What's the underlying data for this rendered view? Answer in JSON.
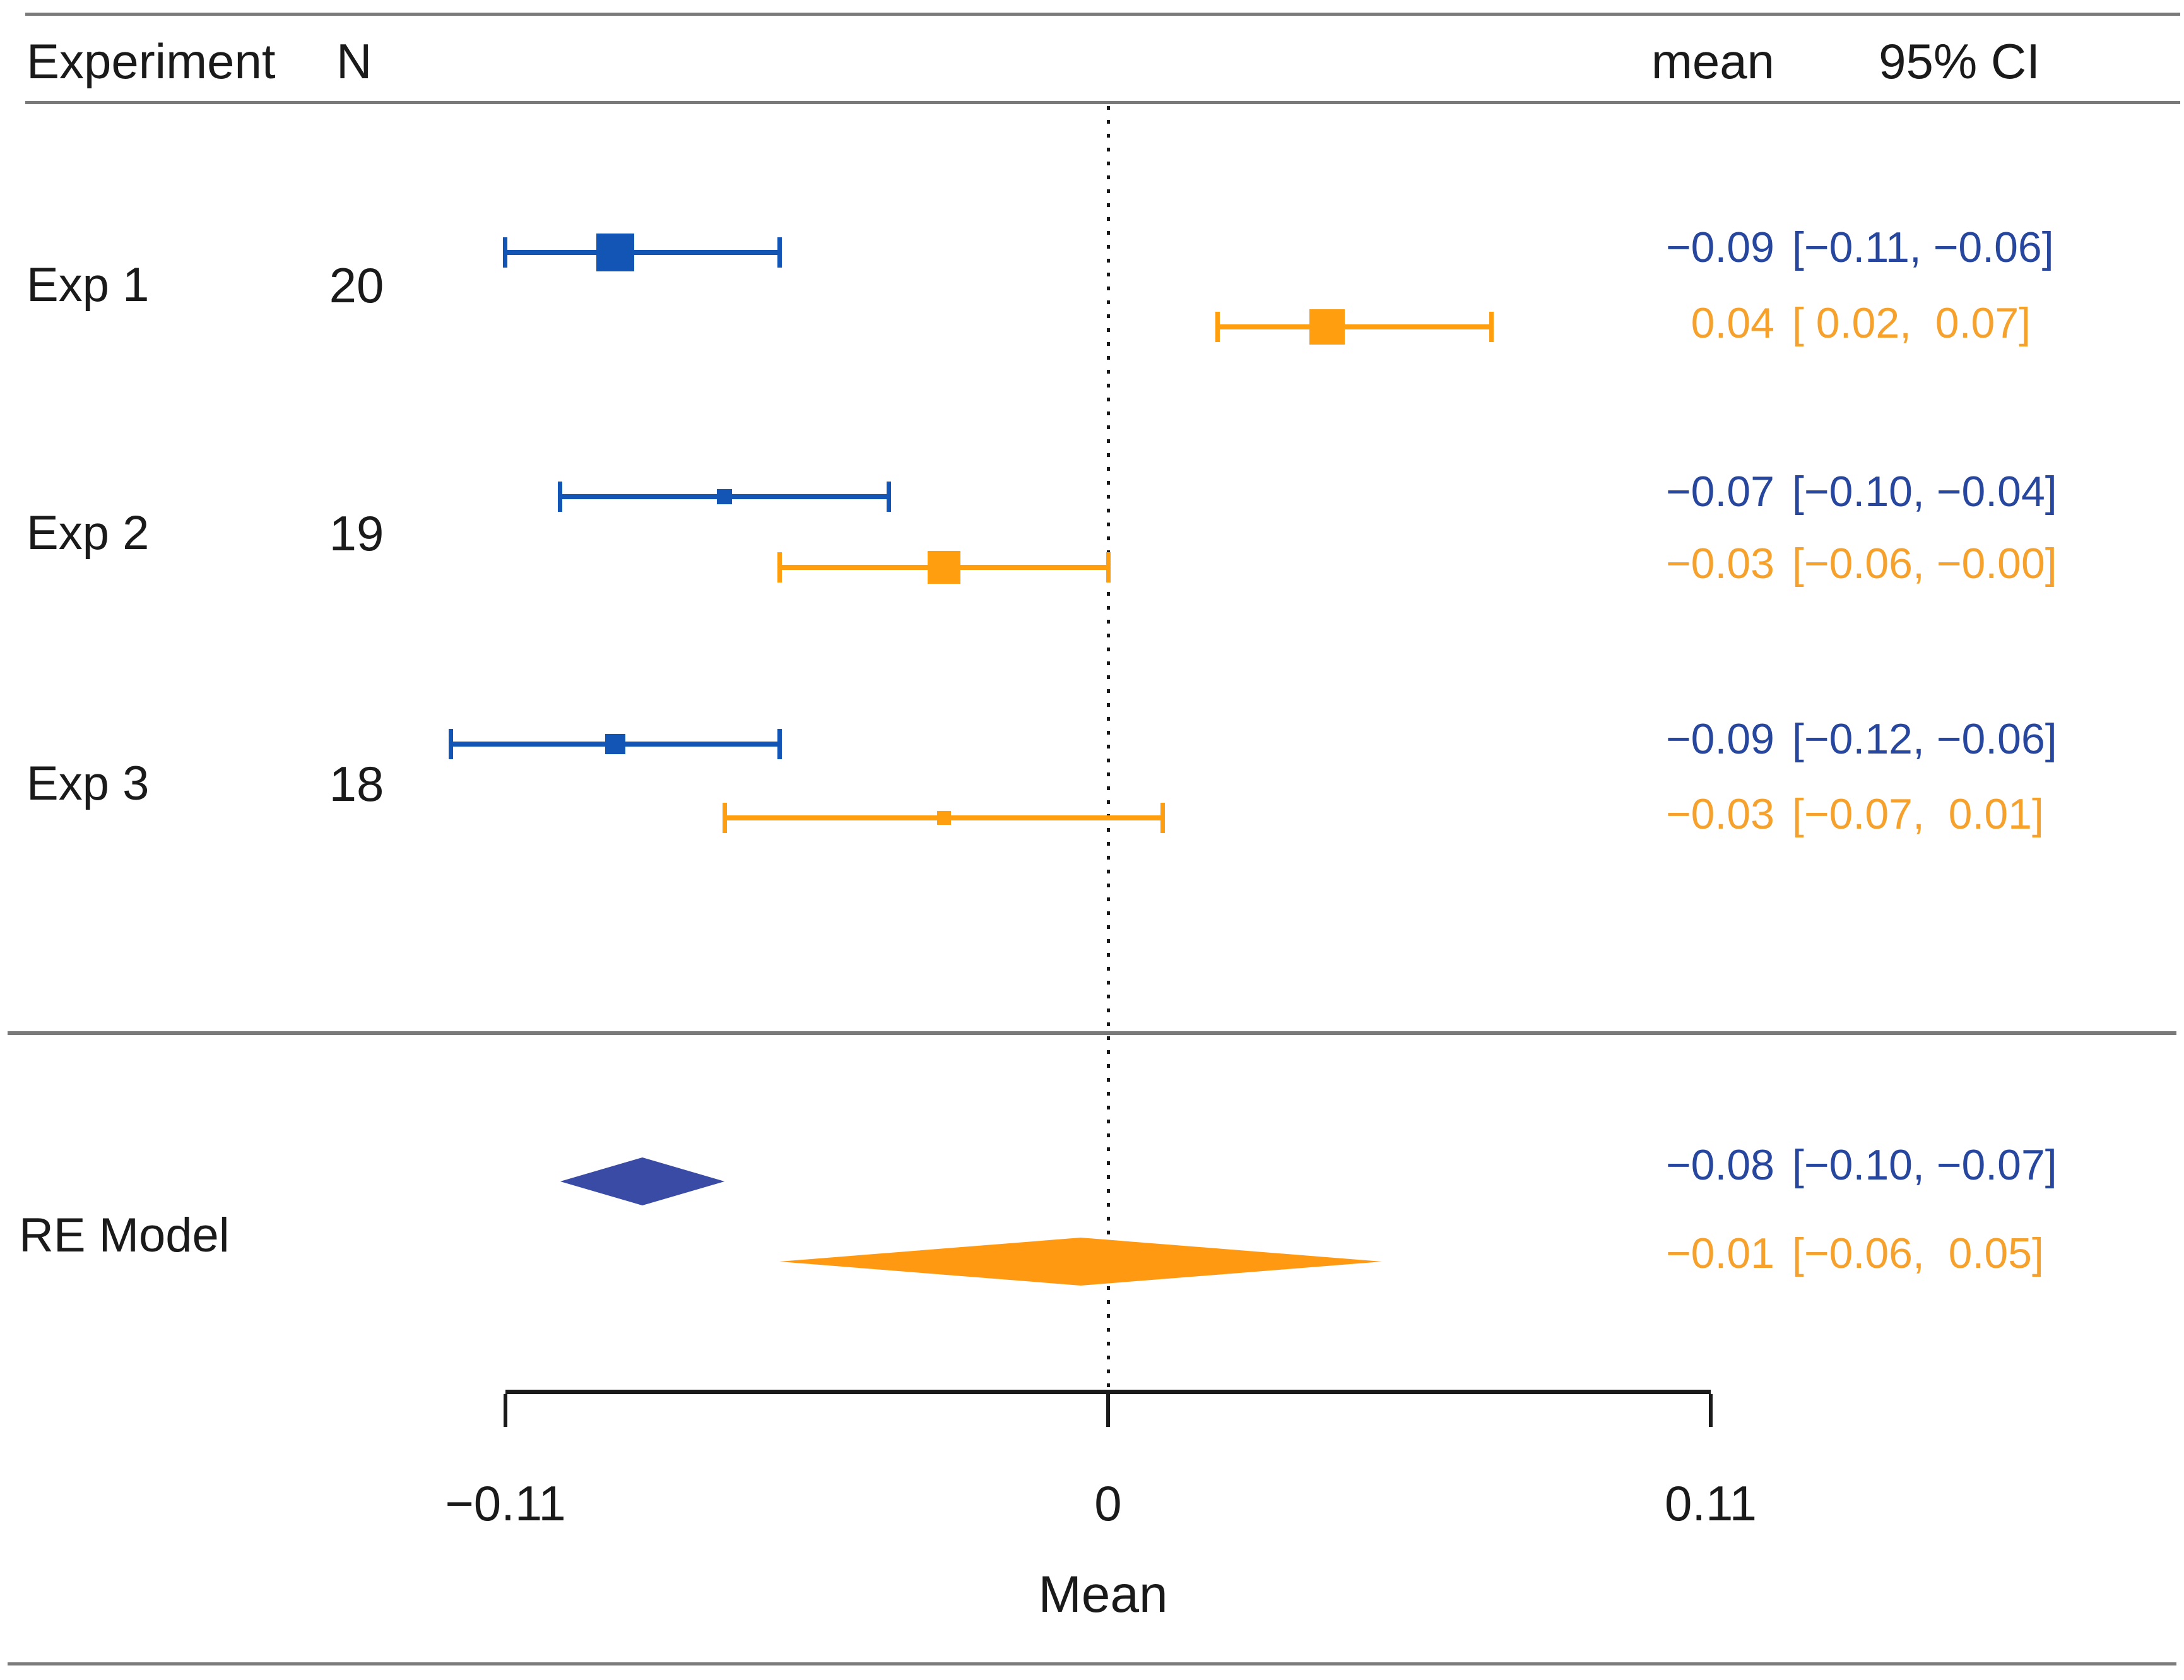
{
  "chart_data": {
    "type": "forest",
    "columns": {
      "experiment": "Experiment",
      "n": "N",
      "mean": "mean",
      "ci": "95% CI"
    },
    "axis": {
      "label": "Mean",
      "ticks": [
        -0.11,
        0,
        0.11
      ],
      "tick_labels": [
        "−0.11",
        "0",
        "0.11"
      ],
      "range": [
        -0.11,
        0.11
      ],
      "zero_line": 0
    },
    "rows": [
      {
        "label": "Exp 1",
        "n": "20",
        "series": [
          {
            "color_key": "blue",
            "mean": -0.09,
            "ci_lo": -0.11,
            "ci_hi": -0.06,
            "mean_text": "−0.09",
            "ci_text": "[−0.11, −0.06]",
            "marker_px": 60
          },
          {
            "color_key": "orange",
            "mean": 0.04,
            "ci_lo": 0.02,
            "ci_hi": 0.07,
            "mean_text": "0.04",
            "ci_text": "[ 0.02,  0.07]",
            "marker_px": 56
          }
        ]
      },
      {
        "label": "Exp 2",
        "n": "19",
        "series": [
          {
            "color_key": "blue",
            "mean": -0.07,
            "ci_lo": -0.1,
            "ci_hi": -0.04,
            "mean_text": "−0.07",
            "ci_text": "[−0.10, −0.04]",
            "marker_px": 24
          },
          {
            "color_key": "orange",
            "mean": -0.03,
            "ci_lo": -0.06,
            "ci_hi": -0.0,
            "mean_text": "−0.03",
            "ci_text": "[−0.06, −0.00]",
            "marker_px": 52
          }
        ]
      },
      {
        "label": "Exp 3",
        "n": "18",
        "series": [
          {
            "color_key": "blue",
            "mean": -0.09,
            "ci_lo": -0.12,
            "ci_hi": -0.06,
            "mean_text": "−0.09",
            "ci_text": "[−0.12, −0.06]",
            "marker_px": 32
          },
          {
            "color_key": "orange",
            "mean": -0.03,
            "ci_lo": -0.07,
            "ci_hi": 0.01,
            "mean_text": "−0.03",
            "ci_text": "[−0.07,  0.01]",
            "marker_px": 22
          }
        ]
      }
    ],
    "summary": {
      "label": "RE Model",
      "series": [
        {
          "color_key": "blue",
          "mean": -0.08,
          "ci_lo": -0.1,
          "ci_hi": -0.07,
          "mean_text": "−0.08",
          "ci_text": "[−0.10, −0.07]"
        },
        {
          "color_key": "orange",
          "mean": -0.01,
          "ci_lo": -0.06,
          "ci_hi": 0.05,
          "mean_text": "−0.01",
          "ci_text": "[−0.06,  0.05]"
        }
      ]
    },
    "colors": {
      "blue_marker": "#1355b4",
      "blue_text": "#27479e",
      "blue_diamond": "#3a4ba6",
      "orange_marker": "#ff9e0e",
      "orange_text": "#f6a12c",
      "orange_diamond": "#ff9911",
      "rule": "#7a7a7a",
      "text": "#1a1a1a"
    }
  }
}
